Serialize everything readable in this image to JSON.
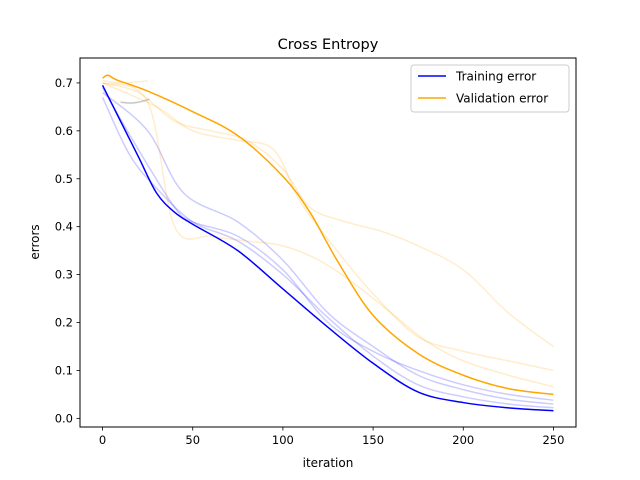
{
  "chart_data": {
    "type": "line",
    "title": "Cross Entropy",
    "xlabel": "iteration",
    "ylabel": "errors",
    "xlim": [
      -12.5,
      262.5
    ],
    "ylim": [
      -0.018,
      0.752
    ],
    "x_ticks": [
      0,
      50,
      100,
      150,
      200,
      250
    ],
    "y_ticks": [
      0.0,
      0.1,
      0.2,
      0.3,
      0.4,
      0.5,
      0.6,
      0.7
    ],
    "grid": false,
    "legend_position": "top-right",
    "series": [
      {
        "name": "Training error",
        "color": "#0000ff",
        "opacity": 1,
        "points": [
          [
            0,
            0.695
          ],
          [
            10,
            0.62
          ],
          [
            20,
            0.545
          ],
          [
            30,
            0.47
          ],
          [
            40,
            0.43
          ],
          [
            50,
            0.405
          ],
          [
            75,
            0.35
          ],
          [
            100,
            0.27
          ],
          [
            125,
            0.19
          ],
          [
            150,
            0.115
          ],
          [
            175,
            0.055
          ],
          [
            200,
            0.033
          ],
          [
            225,
            0.022
          ],
          [
            250,
            0.016
          ]
        ]
      },
      {
        "name": "Validation error",
        "color": "#ffa500",
        "opacity": 1,
        "points": [
          [
            0,
            0.71
          ],
          [
            3,
            0.716
          ],
          [
            8,
            0.706
          ],
          [
            25,
            0.683
          ],
          [
            50,
            0.64
          ],
          [
            75,
            0.59
          ],
          [
            100,
            0.505
          ],
          [
            115,
            0.43
          ],
          [
            130,
            0.33
          ],
          [
            150,
            0.215
          ],
          [
            175,
            0.135
          ],
          [
            200,
            0.09
          ],
          [
            225,
            0.062
          ],
          [
            250,
            0.05
          ]
        ]
      },
      {
        "color": "#0000ff",
        "opacity": 0.2,
        "points": [
          [
            0,
            0.68
          ],
          [
            25,
            0.6
          ],
          [
            45,
            0.47
          ],
          [
            75,
            0.41
          ],
          [
            100,
            0.33
          ],
          [
            125,
            0.22
          ],
          [
            150,
            0.15
          ],
          [
            175,
            0.09
          ],
          [
            200,
            0.06
          ],
          [
            225,
            0.04
          ],
          [
            250,
            0.03
          ]
        ]
      },
      {
        "color": "#0000ff",
        "opacity": 0.2,
        "points": [
          [
            0,
            0.67
          ],
          [
            15,
            0.55
          ],
          [
            30,
            0.48
          ],
          [
            50,
            0.41
          ],
          [
            75,
            0.37
          ],
          [
            100,
            0.3
          ],
          [
            125,
            0.21
          ],
          [
            150,
            0.13
          ],
          [
            175,
            0.07
          ],
          [
            200,
            0.045
          ],
          [
            225,
            0.03
          ],
          [
            250,
            0.022
          ]
        ]
      },
      {
        "color": "#0000ff",
        "opacity": 0.2,
        "points": [
          [
            0,
            0.69
          ],
          [
            20,
            0.56
          ],
          [
            40,
            0.44
          ],
          [
            50,
            0.41
          ],
          [
            75,
            0.38
          ],
          [
            100,
            0.31
          ],
          [
            125,
            0.2
          ],
          [
            150,
            0.14
          ],
          [
            175,
            0.1
          ],
          [
            200,
            0.07
          ],
          [
            225,
            0.05
          ],
          [
            250,
            0.038
          ]
        ]
      },
      {
        "color": "#808080",
        "opacity": 0.45,
        "points": [
          [
            10,
            0.66
          ],
          [
            15,
            0.658
          ],
          [
            20,
            0.66
          ],
          [
            26,
            0.666
          ]
        ]
      },
      {
        "color": "#ffa500",
        "opacity": 0.2,
        "points": [
          [
            0,
            0.7
          ],
          [
            20,
            0.68
          ],
          [
            40,
            0.62
          ],
          [
            60,
            0.6
          ],
          [
            80,
            0.58
          ],
          [
            100,
            0.52
          ],
          [
            115,
            0.44
          ],
          [
            135,
            0.41
          ],
          [
            155,
            0.39
          ],
          [
            175,
            0.36
          ],
          [
            200,
            0.31
          ],
          [
            225,
            0.22
          ],
          [
            250,
            0.15
          ]
        ]
      },
      {
        "color": "#ffa500",
        "opacity": 0.2,
        "points": [
          [
            0,
            0.7
          ],
          [
            25,
            0.66
          ],
          [
            40,
            0.4
          ],
          [
            60,
            0.38
          ],
          [
            80,
            0.37
          ],
          [
            100,
            0.36
          ],
          [
            120,
            0.33
          ],
          [
            140,
            0.28
          ],
          [
            160,
            0.22
          ],
          [
            180,
            0.16
          ],
          [
            200,
            0.12
          ],
          [
            225,
            0.09
          ],
          [
            250,
            0.066
          ]
        ]
      },
      {
        "color": "#ffa500",
        "opacity": 0.2,
        "points": [
          [
            0,
            0.705
          ],
          [
            10,
            0.7
          ],
          [
            25,
            0.704
          ]
        ]
      },
      {
        "color": "#ffa500",
        "opacity": 0.2,
        "points": [
          [
            0,
            0.7
          ],
          [
            30,
            0.65
          ],
          [
            50,
            0.6
          ],
          [
            75,
            0.58
          ],
          [
            95,
            0.56
          ],
          [
            110,
            0.45
          ],
          [
            130,
            0.35
          ],
          [
            150,
            0.26
          ],
          [
            175,
            0.17
          ],
          [
            200,
            0.14
          ],
          [
            225,
            0.12
          ],
          [
            250,
            0.1
          ]
        ]
      }
    ]
  }
}
